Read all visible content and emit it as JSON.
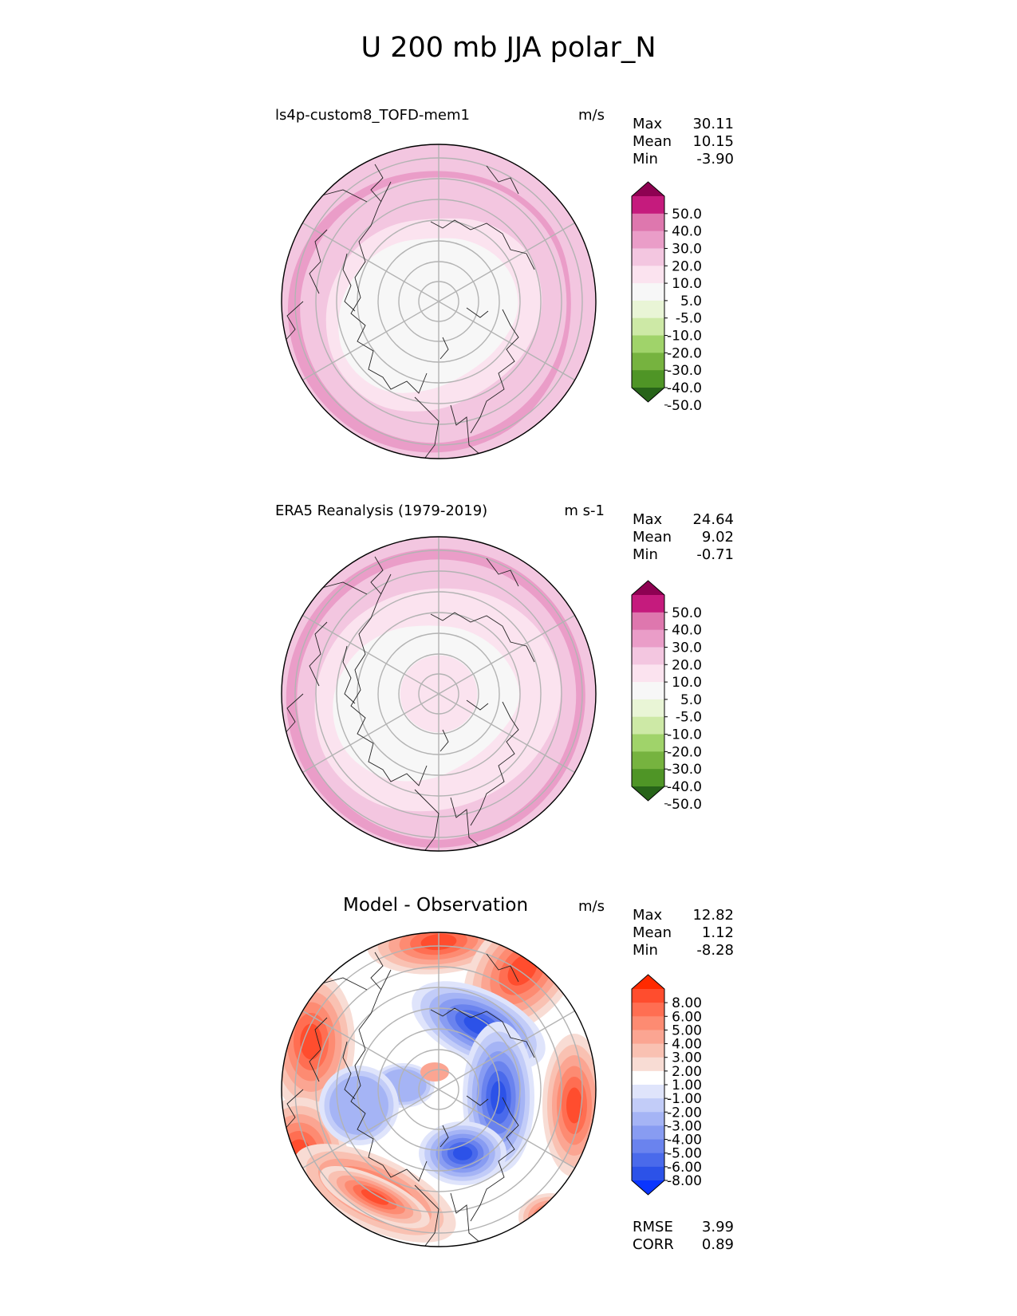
{
  "title": "U 200 mb JJA polar_N",
  "chart_data": [
    {
      "type": "heatmap",
      "projection": "north polar stereographic",
      "label": "ls4p-custom8_TOFD-mem1",
      "units": "m/s",
      "stats": [
        {
          "name": "Max",
          "value": "30.11"
        },
        {
          "name": "Mean",
          "value": "10.15"
        },
        {
          "name": "Min",
          "value": "-3.90"
        }
      ],
      "colorbar": {
        "ticks": [
          "50.0",
          "40.0",
          "30.0",
          "20.0",
          "10.0",
          "5.0",
          "-5.0",
          "-10.0",
          "-20.0",
          "-30.0",
          "-40.0",
          "-50.0"
        ],
        "colors": [
          "#8e0152",
          "#c51b7d",
          "#de77ae",
          "#ea9dc8",
          "#f3c6e0",
          "#fbe3ef",
          "#f7f7f7",
          "#e9f5d6",
          "#cde9a6",
          "#a0d36a",
          "#76b33f",
          "#4f9526",
          "#276419"
        ],
        "extend": "both"
      }
    },
    {
      "type": "heatmap",
      "projection": "north polar stereographic",
      "label": "ERA5 Reanalysis (1979-2019)",
      "units": "m s-1",
      "stats": [
        {
          "name": "Max",
          "value": "24.64"
        },
        {
          "name": "Mean",
          "value": "9.02"
        },
        {
          "name": "Min",
          "value": "-0.71"
        }
      ],
      "colorbar": {
        "ticks": [
          "50.0",
          "40.0",
          "30.0",
          "20.0",
          "10.0",
          "5.0",
          "-5.0",
          "-10.0",
          "-20.0",
          "-30.0",
          "-40.0",
          "-50.0"
        ],
        "colors": [
          "#8e0152",
          "#c51b7d",
          "#de77ae",
          "#ea9dc8",
          "#f3c6e0",
          "#fbe3ef",
          "#f7f7f7",
          "#e9f5d6",
          "#cde9a6",
          "#a0d36a",
          "#76b33f",
          "#4f9526",
          "#276419"
        ],
        "extend": "both"
      }
    },
    {
      "type": "heatmap",
      "projection": "north polar stereographic",
      "label": "Model - Observation",
      "units": "m/s",
      "stats": [
        {
          "name": "Max",
          "value": "12.82"
        },
        {
          "name": "Mean",
          "value": "1.12"
        },
        {
          "name": "Min",
          "value": "-8.28"
        }
      ],
      "metrics": [
        {
          "name": "RMSE",
          "value": "3.99"
        },
        {
          "name": "CORR",
          "value": "0.89"
        }
      ],
      "colorbar": {
        "ticks": [
          "8.00",
          "6.00",
          "5.00",
          "4.00",
          "3.00",
          "2.00",
          "1.00",
          "-1.00",
          "-2.00",
          "-3.00",
          "-4.00",
          "-5.00",
          "-6.00",
          "-8.00"
        ],
        "colors": [
          "#ff2a00",
          "#ff4d2e",
          "#ff6e52",
          "#fd8b72",
          "#fba592",
          "#f9c1b2",
          "#f8dcd4",
          "#ffffff",
          "#dfe4fb",
          "#c2ccf8",
          "#a5b4f5",
          "#889cf2",
          "#6a83ee",
          "#4a6aeb",
          "#2c52e8",
          "#0a35ff"
        ],
        "extend": "both"
      }
    }
  ]
}
